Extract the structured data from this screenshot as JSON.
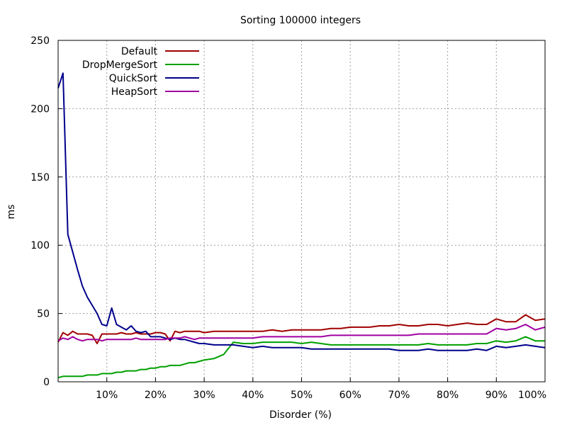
{
  "chart_data": {
    "type": "line",
    "title": "Sorting 100000 integers",
    "xlabel": "Disorder (%)",
    "ylabel": "ms",
    "xlim": [
      0,
      100
    ],
    "ylim": [
      0,
      250
    ],
    "grid": true,
    "legend_position": "top-left",
    "x_ticks": [
      {
        "value": 10,
        "label": "10%"
      },
      {
        "value": 20,
        "label": "20%"
      },
      {
        "value": 30,
        "label": "30%"
      },
      {
        "value": 40,
        "label": "40%"
      },
      {
        "value": 50,
        "label": "50%"
      },
      {
        "value": 60,
        "label": "60%"
      },
      {
        "value": 70,
        "label": "70%"
      },
      {
        "value": 80,
        "label": "80%"
      },
      {
        "value": 90,
        "label": "90%"
      },
      {
        "value": 100,
        "label": "100%"
      }
    ],
    "y_ticks": [
      {
        "value": 0,
        "label": "0"
      },
      {
        "value": 50,
        "label": "50"
      },
      {
        "value": 100,
        "label": "100"
      },
      {
        "value": 150,
        "label": "150"
      },
      {
        "value": 200,
        "label": "200"
      },
      {
        "value": 250,
        "label": "250"
      }
    ],
    "x": [
      0,
      1,
      2,
      3,
      4,
      5,
      6,
      7,
      8,
      9,
      10,
      11,
      12,
      13,
      14,
      15,
      16,
      17,
      18,
      19,
      20,
      21,
      22,
      23,
      24,
      25,
      26,
      27,
      28,
      29,
      30,
      32,
      34,
      36,
      38,
      40,
      42,
      44,
      46,
      48,
      50,
      52,
      54,
      56,
      58,
      60,
      62,
      64,
      66,
      68,
      70,
      72,
      74,
      76,
      78,
      80,
      82,
      84,
      86,
      88,
      90,
      92,
      94,
      96,
      98,
      100
    ],
    "series": [
      {
        "name": "Default",
        "color": "#a00000",
        "values": [
          29,
          36,
          34,
          37,
          35,
          35,
          35,
          34,
          28,
          35,
          35,
          35,
          35,
          36,
          35,
          35,
          36,
          35,
          35,
          35,
          36,
          36,
          35,
          30,
          37,
          36,
          37,
          37,
          37,
          37,
          36,
          37,
          37,
          37,
          37,
          37,
          37,
          38,
          37,
          38,
          38,
          38,
          38,
          39,
          39,
          40,
          40,
          40,
          41,
          41,
          42,
          41,
          41,
          42,
          42,
          41,
          42,
          43,
          42,
          42,
          46,
          44,
          44,
          49,
          45,
          46
        ]
      },
      {
        "name": "DropMergeSort",
        "color": "#00a000",
        "values": [
          3,
          4,
          4,
          4,
          4,
          4,
          5,
          5,
          5,
          6,
          6,
          6,
          7,
          7,
          8,
          8,
          8,
          9,
          9,
          10,
          10,
          11,
          11,
          12,
          12,
          12,
          13,
          14,
          14,
          15,
          16,
          17,
          20,
          29,
          28,
          28,
          29,
          29,
          29,
          29,
          28,
          29,
          28,
          27,
          27,
          27,
          27,
          27,
          27,
          27,
          27,
          27,
          27,
          28,
          27,
          27,
          27,
          27,
          28,
          28,
          30,
          29,
          30,
          33,
          30,
          30
        ]
      },
      {
        "name": "QuickSort",
        "color": "#00008b",
        "values": [
          215,
          226,
          108,
          95,
          82,
          70,
          62,
          56,
          50,
          42,
          41,
          54,
          42,
          40,
          38,
          41,
          37,
          36,
          37,
          33,
          33,
          33,
          32,
          31,
          32,
          31,
          31,
          30,
          29,
          28,
          28,
          27,
          27,
          27,
          26,
          25,
          26,
          25,
          25,
          25,
          25,
          24,
          24,
          24,
          24,
          24,
          24,
          24,
          24,
          24,
          23,
          23,
          23,
          24,
          23,
          23,
          23,
          23,
          24,
          23,
          26,
          25,
          26,
          27,
          26,
          25
        ]
      },
      {
        "name": "HeapSort",
        "color": "#a000a0",
        "values": [
          30,
          32,
          31,
          33,
          31,
          30,
          31,
          31,
          31,
          30,
          31,
          31,
          31,
          31,
          31,
          31,
          32,
          31,
          31,
          31,
          31,
          31,
          31,
          32,
          32,
          32,
          33,
          32,
          31,
          32,
          32,
          32,
          32,
          32,
          32,
          32,
          33,
          33,
          33,
          33,
          33,
          33,
          33,
          34,
          34,
          34,
          34,
          34,
          34,
          34,
          34,
          34,
          35,
          35,
          35,
          35,
          35,
          35,
          35,
          35,
          39,
          38,
          39,
          42,
          38,
          40
        ]
      }
    ]
  }
}
